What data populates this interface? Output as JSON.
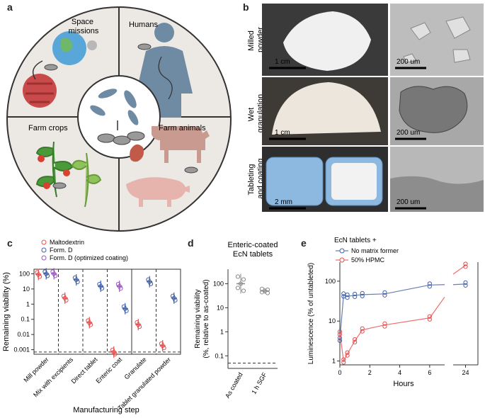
{
  "panels": {
    "a": {
      "letter": "a",
      "quadrants": {
        "space": "Space\nmissions",
        "humans": "Humans",
        "crops": "Farm crops",
        "animals": "Farm animals"
      }
    },
    "b": {
      "letter": "b",
      "rows": [
        {
          "label": "Milled\npowder",
          "scale_left": "1 cm",
          "scale_right": "200 um"
        },
        {
          "label": "Wet\ngranulation",
          "scale_left": "1 cm",
          "scale_right": "200 um"
        },
        {
          "label": "Tableting\nand coating",
          "scale_left": "2 mm",
          "scale_right": "200 um"
        }
      ]
    },
    "c": {
      "letter": "c"
    },
    "d": {
      "letter": "d"
    },
    "e": {
      "letter": "e"
    }
  },
  "colors": {
    "maltodextrin": "#e84b4b",
    "formD": "#3d5fa8",
    "formD_opt": "#9b59b6",
    "sgf": "#8a8a8a",
    "hpmc": "#e84b4b",
    "no_matrix": "#3d5fa8"
  },
  "chart_data": [
    {
      "type": "scatter",
      "id": "c",
      "ylabel": "Remaining viability (%)",
      "xlabel": "Manufacturing step",
      "yscale": "log",
      "ylim": [
        0.0005,
        200
      ],
      "yticks": [
        "0.001",
        "0.01",
        "0.1",
        "1",
        "10",
        "100"
      ],
      "categories": [
        "Mill powder",
        "Mix with excipients",
        "Direct tablet",
        "Enteric coat",
        "Granulate",
        "Tablet granulated powder"
      ],
      "series": [
        {
          "name": "Maltodextrin",
          "values": [
            90,
            2.5,
            0.06,
            0.0007,
            0.045,
            0.0018
          ]
        },
        {
          "name": "Form. D",
          "values": [
            100,
            40,
            15,
            0.5,
            30,
            2.5
          ]
        },
        {
          "name": "Form. D (optimized coating)",
          "values": [
            100,
            null,
            null,
            15,
            null,
            null
          ]
        }
      ],
      "detection_limit": 0.0007
    },
    {
      "type": "scatter",
      "id": "d",
      "title": "Enteric-coated\nEcN tablets",
      "ylabel": "Remaining viability\n(%, relative to as-coated)",
      "yscale": "log",
      "ylim": [
        0.03,
        400
      ],
      "yticks": [
        "0.1",
        "1",
        "10",
        "100"
      ],
      "categories": [
        "As coated",
        "1 h SGF"
      ],
      "values": [
        100,
        50
      ],
      "detection_limit": 0.05
    },
    {
      "type": "line",
      "id": "e",
      "legend_title": "EcN tablets +",
      "xlabel": "Hours",
      "ylabel": "Luminescence (% of untableted)",
      "yscale": "log",
      "ylim": [
        0.8,
        300
      ],
      "yticks": [
        "1",
        "10",
        "100"
      ],
      "xticks": [
        "0",
        "2",
        "4",
        "6",
        "24"
      ],
      "series": [
        {
          "name": "No matrix former",
          "x": [
            0,
            0.25,
            0.5,
            1,
            1.5,
            3,
            6,
            24
          ],
          "y": [
            3.5,
            45,
            42,
            44,
            46,
            48,
            80,
            85
          ]
        },
        {
          "name": "50% HPMC",
          "x": [
            0,
            0.25,
            0.5,
            1,
            1.5,
            3,
            6,
            24
          ],
          "y": [
            5,
            1,
            1.5,
            3.2,
            6,
            8,
            12,
            250
          ]
        }
      ]
    }
  ]
}
